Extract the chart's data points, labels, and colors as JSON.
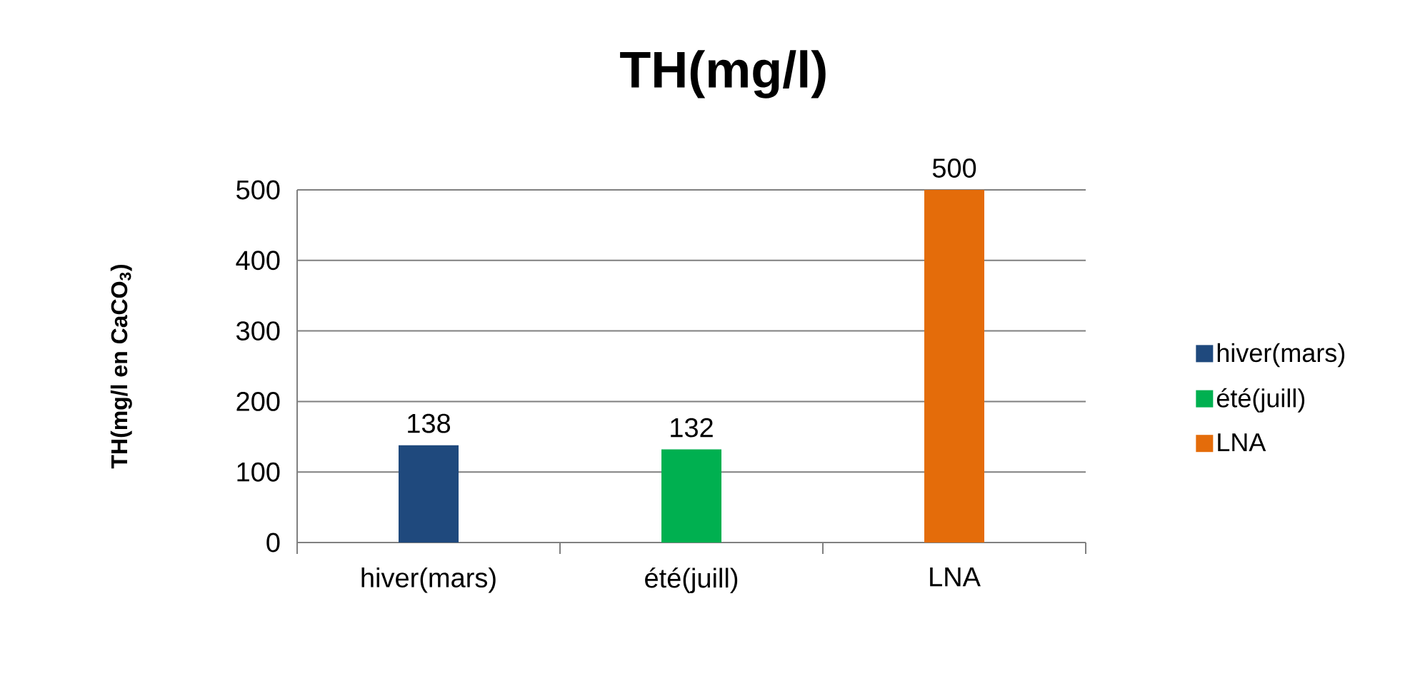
{
  "chart_data": {
    "type": "bar",
    "title": "TH(mg/l)",
    "ylabel": "TH(mg/l en CaCO$_{3}$)",
    "categories": [
      "hiver(mars)",
      "été(juill)",
      "LNA"
    ],
    "series": [
      {
        "name": "hiver(mars)",
        "color": "#1f497d",
        "values": [
          138,
          null,
          null
        ]
      },
      {
        "name": "été(juill)",
        "color": "#00b050",
        "values": [
          null,
          132,
          null
        ]
      },
      {
        "name": "LNA",
        "color": "#e46c0a",
        "values": [
          null,
          null,
          500
        ]
      }
    ],
    "ylim": [
      0,
      500
    ],
    "yticks": [
      0,
      100,
      200,
      300,
      400,
      500
    ],
    "grid": "y",
    "legend": "right",
    "data_labels": true
  }
}
